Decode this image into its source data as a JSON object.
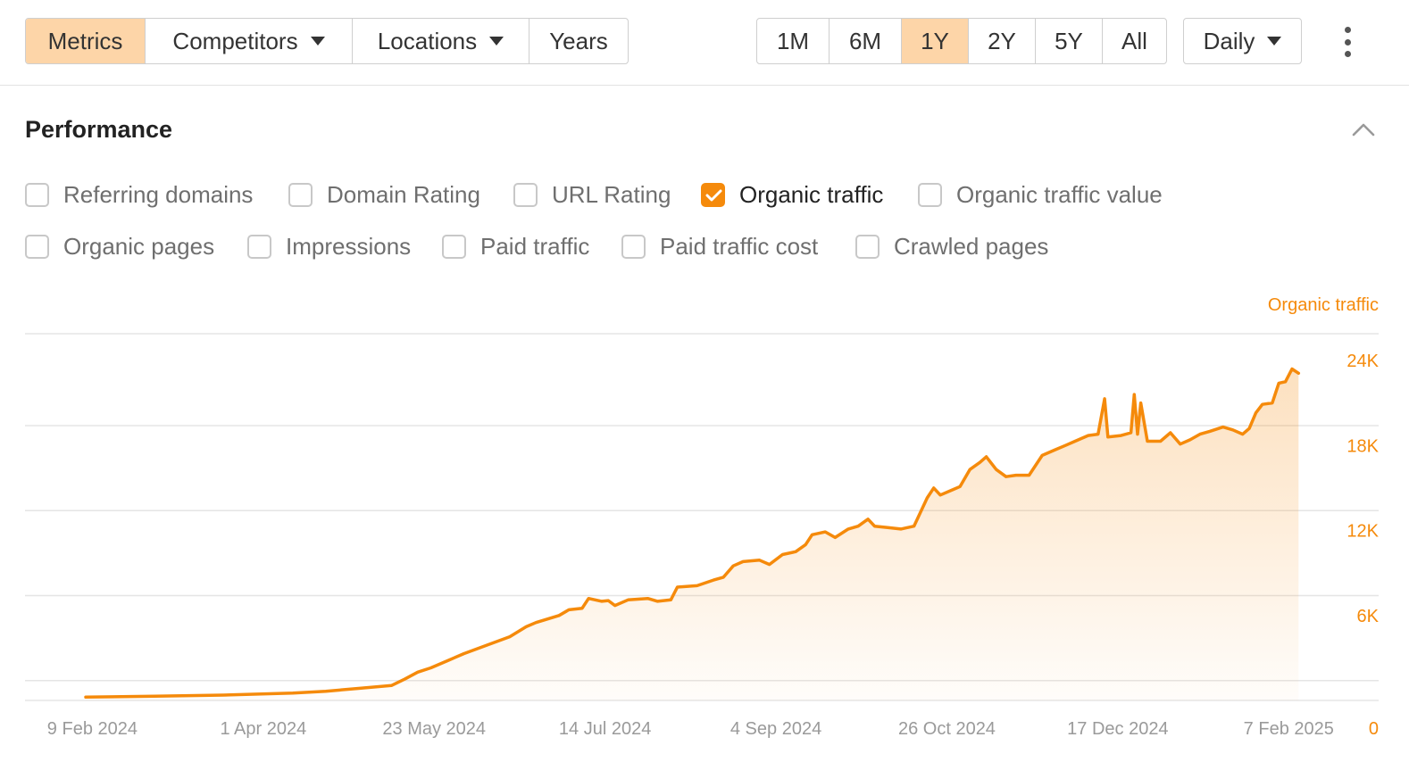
{
  "toolbar": {
    "view_tabs": [
      {
        "label": "Metrics",
        "active": true
      },
      {
        "label": "Competitors",
        "dropdown": true
      },
      {
        "label": "Locations",
        "dropdown": true
      },
      {
        "label": "Years"
      }
    ],
    "ranges": [
      {
        "label": "1M"
      },
      {
        "label": "6M"
      },
      {
        "label": "1Y",
        "active": true
      },
      {
        "label": "2Y"
      },
      {
        "label": "5Y"
      },
      {
        "label": "All"
      }
    ],
    "interval": {
      "label": "Daily"
    },
    "more_icon": "vertical-dots-icon"
  },
  "performance": {
    "title": "Performance",
    "collapse_icon": "chevron-up-icon",
    "metrics_row1": [
      {
        "label": "Referring domains",
        "checked": false
      },
      {
        "label": "Domain Rating",
        "checked": false
      },
      {
        "label": "URL Rating",
        "checked": false
      },
      {
        "label": "Organic traffic",
        "checked": true
      },
      {
        "label": "Organic traffic value",
        "checked": false
      }
    ],
    "metrics_row2": [
      {
        "label": "Organic pages",
        "checked": false
      },
      {
        "label": "Impressions",
        "checked": false
      },
      {
        "label": "Paid traffic",
        "checked": false
      },
      {
        "label": "Paid traffic cost",
        "checked": false
      },
      {
        "label": "Crawled pages",
        "checked": false
      }
    ]
  },
  "colors": {
    "accent": "#f58a0b",
    "active_bg": "#fdd5a8",
    "grid": "#e5e5e5",
    "tick": "#9a9a9a"
  },
  "chart_data": {
    "type": "area",
    "series_name": "Organic traffic",
    "x_range": [
      "2024-02-04",
      "2025-02-11"
    ],
    "ylim": [
      0,
      24000
    ],
    "yticks": [
      {
        "value": 24000,
        "label": "24K"
      },
      {
        "value": 18000,
        "label": "18K"
      },
      {
        "value": 12000,
        "label": "12K"
      },
      {
        "value": 6000,
        "label": "6K"
      },
      {
        "value": 0,
        "label": "0"
      }
    ],
    "xticks": [
      {
        "date": "2024-02-09",
        "label": "9 Feb 2024"
      },
      {
        "date": "2024-04-01",
        "label": "1 Apr 2024"
      },
      {
        "date": "2024-05-23",
        "label": "23 May 2024"
      },
      {
        "date": "2024-07-14",
        "label": "14 Jul 2024"
      },
      {
        "date": "2024-09-04",
        "label": "4 Sep 2024"
      },
      {
        "date": "2024-10-26",
        "label": "26 Oct 2024"
      },
      {
        "date": "2024-12-17",
        "label": "17 Dec 2024"
      },
      {
        "date": "2025-02-07",
        "label": "7 Feb 2025"
      }
    ],
    "grid": true,
    "points": [
      [
        "2024-02-07",
        230
      ],
      [
        "2024-02-28",
        300
      ],
      [
        "2024-03-20",
        380
      ],
      [
        "2024-04-10",
        520
      ],
      [
        "2024-04-20",
        650
      ],
      [
        "2024-04-30",
        850
      ],
      [
        "2024-05-05",
        950
      ],
      [
        "2024-05-10",
        1050
      ],
      [
        "2024-05-14",
        1500
      ],
      [
        "2024-05-18",
        2000
      ],
      [
        "2024-05-22",
        2300
      ],
      [
        "2024-05-27",
        2800
      ],
      [
        "2024-06-01",
        3300
      ],
      [
        "2024-06-08",
        3900
      ],
      [
        "2024-06-15",
        4500
      ],
      [
        "2024-06-20",
        5200
      ],
      [
        "2024-06-23",
        5500
      ],
      [
        "2024-06-30",
        6000
      ],
      [
        "2024-07-03",
        6400
      ],
      [
        "2024-07-07",
        6500
      ],
      [
        "2024-07-09",
        7200
      ],
      [
        "2024-07-13",
        7000
      ],
      [
        "2024-07-15",
        7050
      ],
      [
        "2024-07-17",
        6700
      ],
      [
        "2024-07-21",
        7100
      ],
      [
        "2024-07-27",
        7200
      ],
      [
        "2024-07-30",
        7000
      ],
      [
        "2024-08-03",
        7100
      ],
      [
        "2024-08-05",
        8000
      ],
      [
        "2024-08-11",
        8100
      ],
      [
        "2024-08-16",
        8500
      ],
      [
        "2024-08-19",
        8700
      ],
      [
        "2024-08-22",
        9500
      ],
      [
        "2024-08-25",
        9800
      ],
      [
        "2024-08-30",
        9900
      ],
      [
        "2024-09-02",
        9600
      ],
      [
        "2024-09-06",
        10300
      ],
      [
        "2024-09-10",
        10500
      ],
      [
        "2024-09-13",
        11000
      ],
      [
        "2024-09-15",
        11700
      ],
      [
        "2024-09-19",
        11900
      ],
      [
        "2024-09-22",
        11500
      ],
      [
        "2024-09-26",
        12100
      ],
      [
        "2024-09-29",
        12300
      ],
      [
        "2024-10-02",
        12800
      ],
      [
        "2024-10-04",
        12300
      ],
      [
        "2024-10-08",
        12200
      ],
      [
        "2024-10-12",
        12100
      ],
      [
        "2024-10-16",
        12300
      ],
      [
        "2024-10-20",
        14300
      ],
      [
        "2024-10-22",
        15000
      ],
      [
        "2024-10-24",
        14500
      ],
      [
        "2024-10-28",
        14900
      ],
      [
        "2024-10-30",
        15100
      ],
      [
        "2024-11-02",
        16300
      ],
      [
        "2024-11-05",
        16800
      ],
      [
        "2024-11-07",
        17200
      ],
      [
        "2024-11-10",
        16300
      ],
      [
        "2024-11-13",
        15800
      ],
      [
        "2024-11-16",
        15900
      ],
      [
        "2024-11-20",
        15900
      ],
      [
        "2024-11-24",
        17300
      ],
      [
        "2024-11-28",
        17700
      ],
      [
        "2024-12-01",
        18000
      ],
      [
        "2024-12-04",
        18300
      ],
      [
        "2024-12-08",
        18700
      ],
      [
        "2024-12-11",
        18800
      ],
      [
        "2024-12-13",
        21300
      ],
      [
        "2024-12-14",
        18600
      ],
      [
        "2024-12-18",
        18700
      ],
      [
        "2024-12-21",
        18900
      ],
      [
        "2024-12-22",
        21600
      ],
      [
        "2024-12-23",
        18800
      ],
      [
        "2024-12-24",
        21000
      ],
      [
        "2024-12-26",
        18300
      ],
      [
        "2024-12-30",
        18300
      ],
      [
        "2025-01-02",
        18900
      ],
      [
        "2025-01-05",
        18100
      ],
      [
        "2025-01-08",
        18400
      ],
      [
        "2025-01-11",
        18800
      ],
      [
        "2025-01-14",
        19000
      ],
      [
        "2025-01-18",
        19300
      ],
      [
        "2025-01-21",
        19100
      ],
      [
        "2025-01-24",
        18800
      ],
      [
        "2025-01-26",
        19200
      ],
      [
        "2025-01-28",
        20300
      ],
      [
        "2025-01-30",
        20900
      ],
      [
        "2025-02-02",
        21000
      ],
      [
        "2025-02-04",
        22400
      ],
      [
        "2025-02-06",
        22500
      ],
      [
        "2025-02-08",
        23400
      ],
      [
        "2025-02-10",
        23100
      ]
    ]
  }
}
